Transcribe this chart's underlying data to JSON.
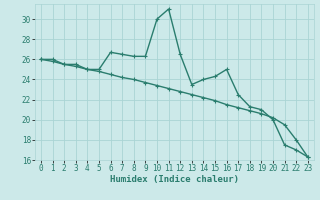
{
  "xlabel": "Humidex (Indice chaleur)",
  "x": [
    0,
    1,
    2,
    3,
    4,
    5,
    6,
    7,
    8,
    9,
    10,
    11,
    12,
    13,
    14,
    15,
    16,
    17,
    18,
    19,
    20,
    21,
    22,
    23
  ],
  "line1": [
    26,
    26,
    25.5,
    25.5,
    25,
    25,
    26.7,
    26.5,
    26.3,
    26.3,
    30,
    31,
    26.5,
    23.5,
    24,
    24.3,
    25,
    22.5,
    21.3,
    21,
    20,
    17.5,
    17,
    16.3
  ],
  "line2": [
    26,
    25.8,
    25.5,
    25.3,
    25,
    24.8,
    24.5,
    24.2,
    24,
    23.7,
    23.4,
    23.1,
    22.8,
    22.5,
    22.2,
    21.9,
    21.5,
    21.2,
    20.9,
    20.6,
    20.2,
    19.5,
    18,
    16.3
  ],
  "line_color": "#2a7d6e",
  "bg_color": "#cce9e9",
  "grid_color": "#aad4d4",
  "ylim": [
    16,
    31.5
  ],
  "xlim": [
    -0.5,
    23.5
  ],
  "yticks": [
    16,
    18,
    20,
    22,
    24,
    26,
    28,
    30
  ],
  "xticks": [
    0,
    1,
    2,
    3,
    4,
    5,
    6,
    7,
    8,
    9,
    10,
    11,
    12,
    13,
    14,
    15,
    16,
    17,
    18,
    19,
    20,
    21,
    22,
    23
  ],
  "markersize": 2.5,
  "linewidth": 1.0,
  "tick_fontsize": 5.5,
  "xlabel_fontsize": 6.5
}
